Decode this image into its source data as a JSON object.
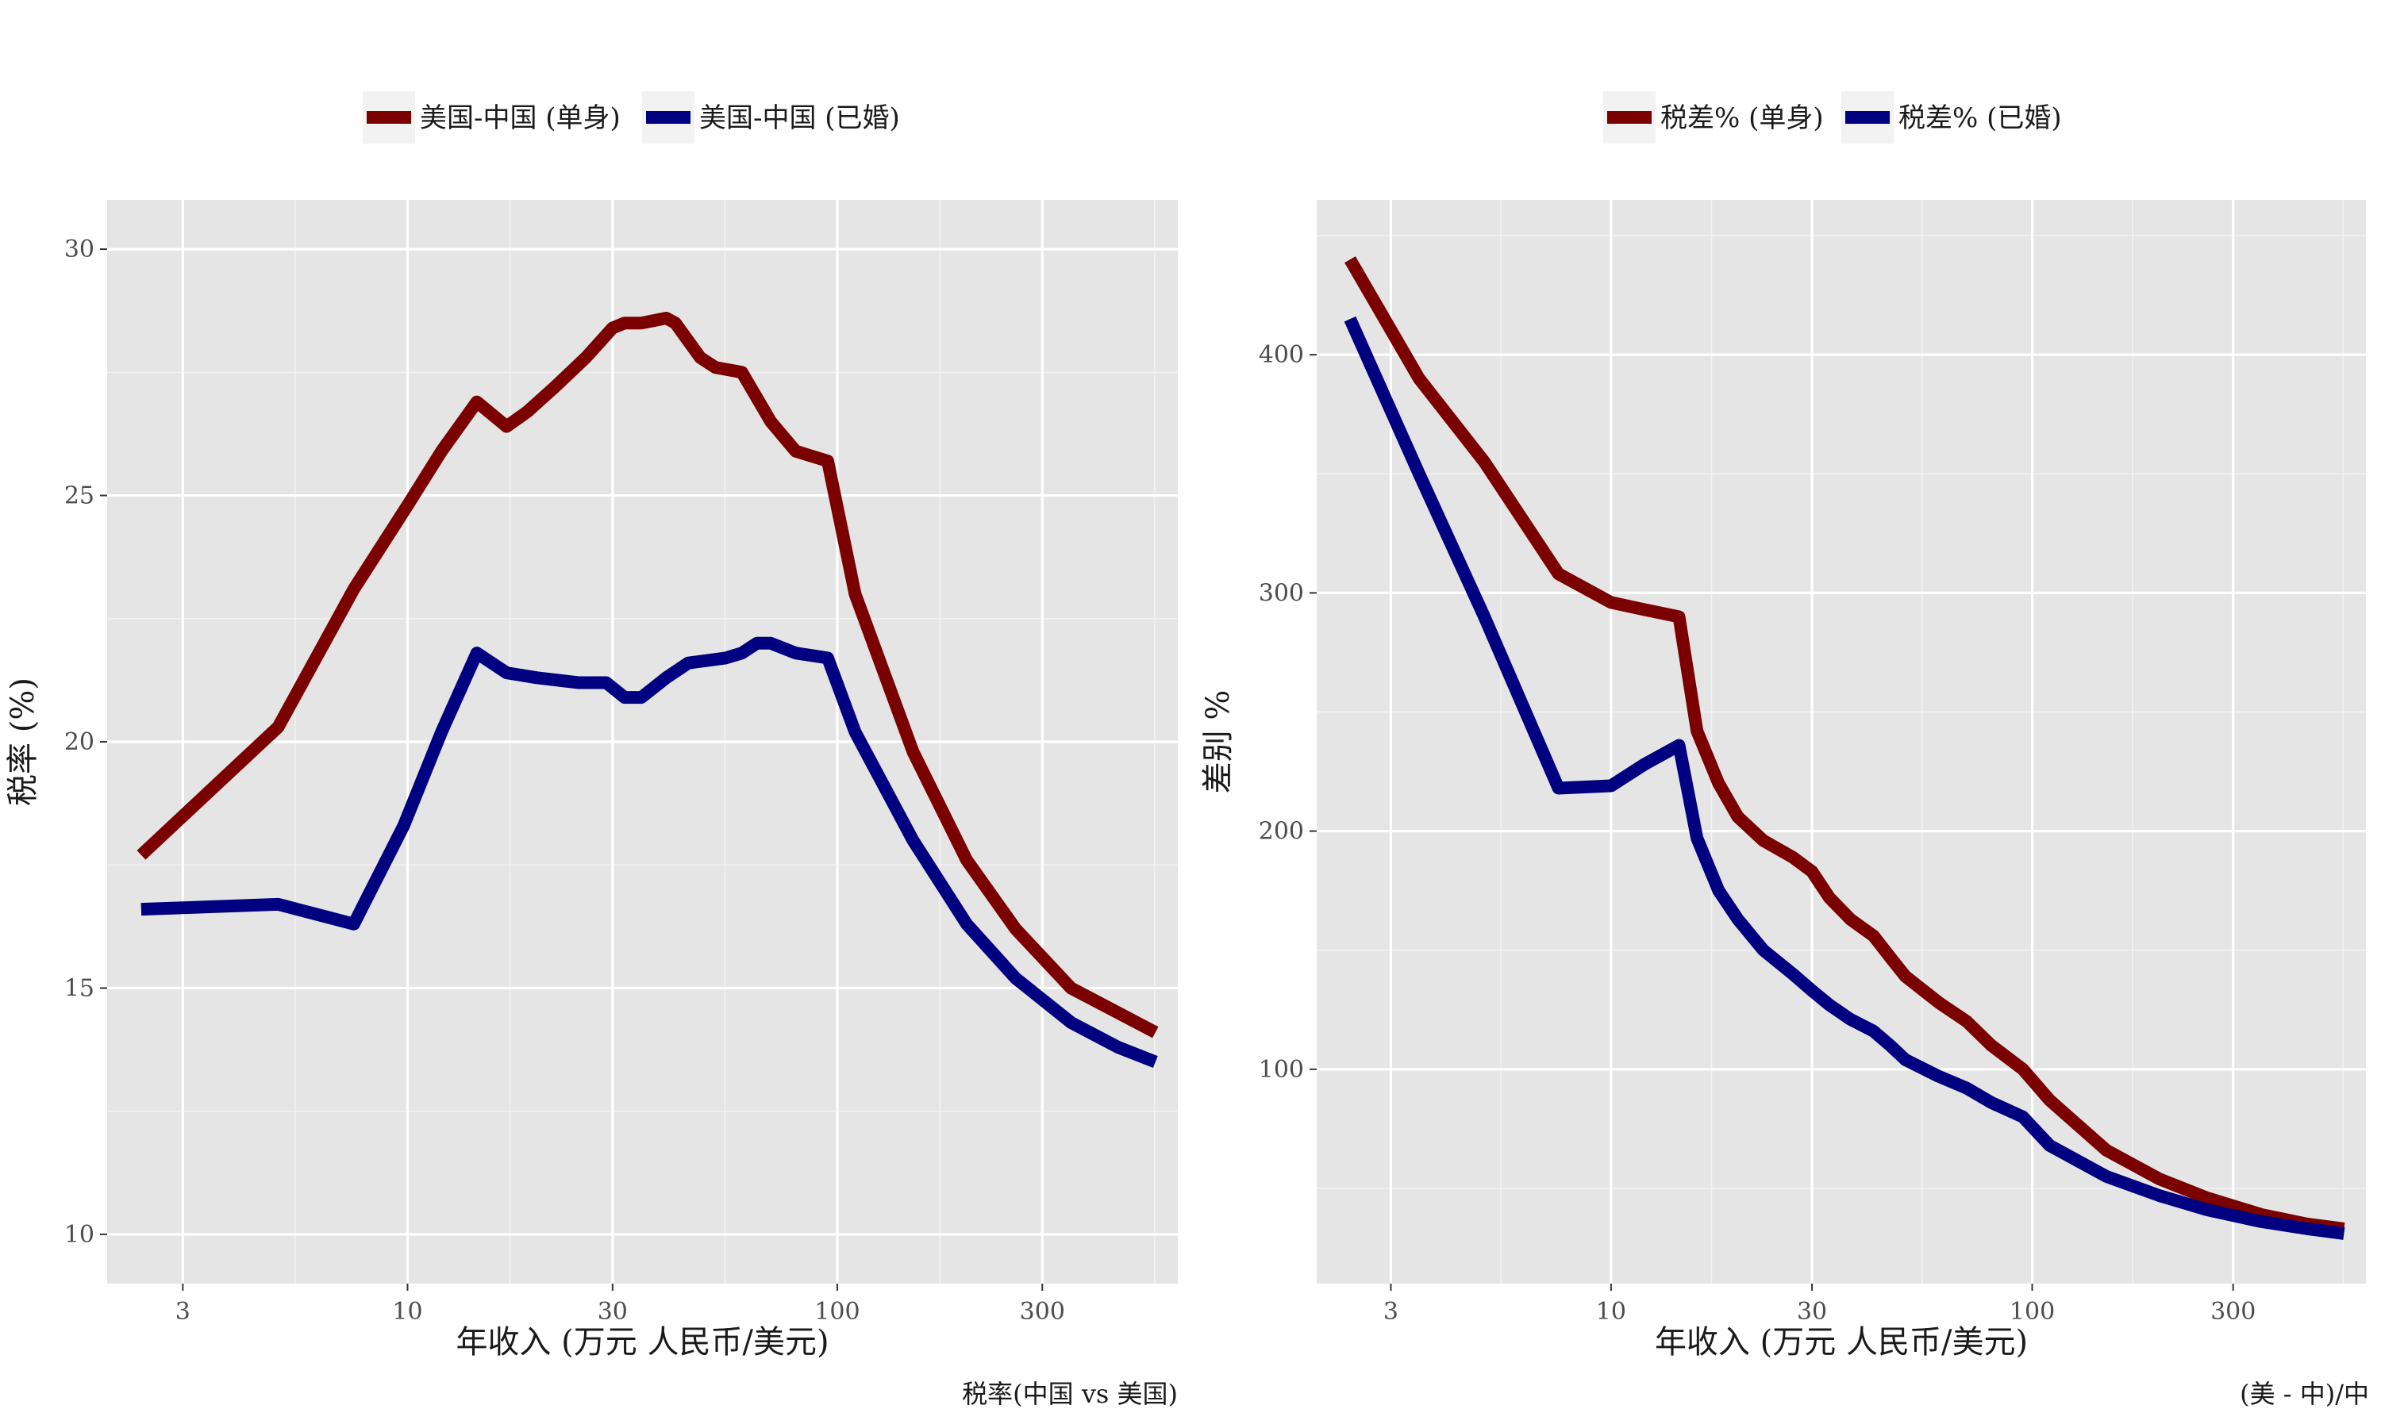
{
  "chart_data": [
    {
      "type": "line",
      "title": "",
      "xlabel": "年收入 (万元 人民币/美元)",
      "ylabel": "税率 (%)",
      "caption": "税率(中国 vs 美国)",
      "x_scale": "log",
      "xlim": [
        2.0,
        620
      ],
      "ylim": [
        9.0,
        31.0
      ],
      "x_ticks": [
        3,
        10,
        30,
        100,
        300
      ],
      "x_tick_labels": [
        "3",
        "10",
        "30",
        "100",
        "300"
      ],
      "y_ticks": [
        10,
        15,
        20,
        25,
        30
      ],
      "y_tick_labels": [
        "10",
        "15",
        "20",
        "25",
        "30"
      ],
      "grid": true,
      "legend_position": "top",
      "series": [
        {
          "name": "美国-中国 (单身)",
          "color": "#7b0000",
          "points": [
            [
              2.4,
              17.7
            ],
            [
              5.0,
              20.3
            ],
            [
              7.5,
              23.1
            ],
            [
              10.0,
              24.8
            ],
            [
              12.0,
              25.9
            ],
            [
              14.5,
              26.9
            ],
            [
              17.0,
              26.4
            ],
            [
              19.0,
              26.7
            ],
            [
              22.0,
              27.2
            ],
            [
              26.0,
              27.8
            ],
            [
              30.0,
              28.4
            ],
            [
              32.0,
              28.5
            ],
            [
              35.0,
              28.5
            ],
            [
              40.0,
              28.6
            ],
            [
              42.0,
              28.5
            ],
            [
              48.0,
              27.8
            ],
            [
              52.0,
              27.6
            ],
            [
              60.0,
              27.5
            ],
            [
              70.0,
              26.5
            ],
            [
              80.0,
              25.9
            ],
            [
              95.0,
              25.7
            ],
            [
              110.0,
              23.0
            ],
            [
              150.0,
              19.8
            ],
            [
              200.0,
              17.6
            ],
            [
              260.0,
              16.2
            ],
            [
              350.0,
              15.0
            ],
            [
              450.0,
              14.5
            ],
            [
              550.0,
              14.1
            ]
          ]
        },
        {
          "name": "美国-中国 (已婚)",
          "color": "#000080",
          "points": [
            [
              2.4,
              16.6
            ],
            [
              5.0,
              16.7
            ],
            [
              7.5,
              16.3
            ],
            [
              9.8,
              18.3
            ],
            [
              12.0,
              20.2
            ],
            [
              14.5,
              21.8
            ],
            [
              17.0,
              21.4
            ],
            [
              20.0,
              21.3
            ],
            [
              25.0,
              21.2
            ],
            [
              29.0,
              21.2
            ],
            [
              32.0,
              20.9
            ],
            [
              35.0,
              20.9
            ],
            [
              40.0,
              21.3
            ],
            [
              45.0,
              21.6
            ],
            [
              55.0,
              21.7
            ],
            [
              60.0,
              21.8
            ],
            [
              65.0,
              22.0
            ],
            [
              70.0,
              22.0
            ],
            [
              80.0,
              21.8
            ],
            [
              95.0,
              21.7
            ],
            [
              110.0,
              20.2
            ],
            [
              150.0,
              18.0
            ],
            [
              200.0,
              16.3
            ],
            [
              260.0,
              15.2
            ],
            [
              350.0,
              14.3
            ],
            [
              450.0,
              13.8
            ],
            [
              550.0,
              13.5
            ]
          ]
        }
      ]
    },
    {
      "type": "line",
      "title": "",
      "xlabel": "年收入 (万元 人民币/美元)",
      "ylabel": "差别 %",
      "caption": "(美 - 中)/中",
      "x_scale": "log",
      "xlim": [
        2.0,
        620
      ],
      "ylim": [
        10,
        465
      ],
      "x_ticks": [
        3,
        10,
        30,
        100,
        300
      ],
      "x_tick_labels": [
        "3",
        "10",
        "30",
        "100",
        "300"
      ],
      "y_ticks": [
        100,
        200,
        300,
        400
      ],
      "y_tick_labels": [
        "100",
        "200",
        "300",
        "400"
      ],
      "grid": true,
      "legend_position": "top",
      "series": [
        {
          "name": "税差% (单身)",
          "color": "#7b0000",
          "points": [
            [
              2.4,
              440
            ],
            [
              3.5,
              390
            ],
            [
              5.0,
              355
            ],
            [
              7.5,
              308
            ],
            [
              10.0,
              296
            ],
            [
              12.0,
              293
            ],
            [
              14.5,
              290
            ],
            [
              16.0,
              242
            ],
            [
              18.0,
              220
            ],
            [
              20.0,
              206
            ],
            [
              23.0,
              196
            ],
            [
              27.0,
              189
            ],
            [
              30.0,
              183
            ],
            [
              33.0,
              172
            ],
            [
              37.0,
              163
            ],
            [
              42.0,
              156
            ],
            [
              46.0,
              147
            ],
            [
              50.0,
              139
            ],
            [
              60.0,
              128
            ],
            [
              70.0,
              120
            ],
            [
              80.0,
              110
            ],
            [
              95.0,
              100
            ],
            [
              110.0,
              87
            ],
            [
              150.0,
              66
            ],
            [
              200.0,
              54
            ],
            [
              260.0,
              46
            ],
            [
              350.0,
              39
            ],
            [
              450.0,
              35
            ],
            [
              550.0,
              33
            ]
          ]
        },
        {
          "name": "税差% (已婚)",
          "color": "#000080",
          "points": [
            [
              2.4,
              415
            ],
            [
              3.5,
              350
            ],
            [
              5.0,
              290
            ],
            [
              7.5,
              218
            ],
            [
              10.0,
              219
            ],
            [
              12.0,
              228
            ],
            [
              14.5,
              236
            ],
            [
              16.0,
              197
            ],
            [
              18.0,
              175
            ],
            [
              20.0,
              163
            ],
            [
              23.0,
              150
            ],
            [
              27.0,
              140
            ],
            [
              30.0,
              133
            ],
            [
              33.0,
              127
            ],
            [
              37.0,
              121
            ],
            [
              42.0,
              116
            ],
            [
              46.0,
              110
            ],
            [
              50.0,
              104
            ],
            [
              60.0,
              97
            ],
            [
              70.0,
              92
            ],
            [
              80.0,
              86
            ],
            [
              95.0,
              80
            ],
            [
              110.0,
              68
            ],
            [
              150.0,
              55
            ],
            [
              200.0,
              47
            ],
            [
              260.0,
              41
            ],
            [
              350.0,
              36
            ],
            [
              450.0,
              33
            ],
            [
              550.0,
              31
            ]
          ]
        }
      ]
    }
  ]
}
